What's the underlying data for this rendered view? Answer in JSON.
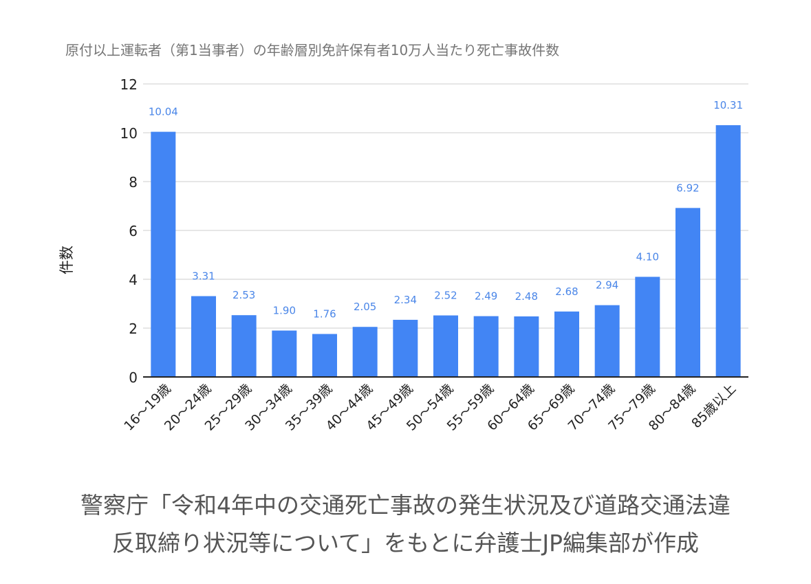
{
  "chart_data": {
    "type": "bar",
    "title": "原付以上運転者（第1当事者）の年齢層別免許保有者10万人当たり死亡事故件数",
    "ylabel": "件数",
    "xlabel": "",
    "categories": [
      "16～19歳",
      "20～24歳",
      "25～29歳",
      "30～34歳",
      "35～39歳",
      "40～44歳",
      "45～49歳",
      "50～54歳",
      "55～59歳",
      "60～64歳",
      "65～69歳",
      "70～74歳",
      "75～79歳",
      "80～84歳",
      "85歳以上"
    ],
    "values": [
      10.04,
      3.31,
      2.53,
      1.9,
      1.76,
      2.05,
      2.34,
      2.52,
      2.49,
      2.48,
      2.68,
      2.94,
      4.1,
      6.92,
      10.31
    ],
    "value_labels": [
      "10.04",
      "3.31",
      "2.53",
      "1.90",
      "1.76",
      "2.05",
      "2.34",
      "2.52",
      "2.49",
      "2.48",
      "2.68",
      "2.94",
      "4.10",
      "6.92",
      "10.31"
    ],
    "ylim": [
      0,
      12
    ],
    "yticks": [
      "0",
      "2",
      "4",
      "6",
      "8",
      "10",
      "12"
    ],
    "grid": true,
    "legend": "none",
    "colors": {
      "bar": "#4285f4",
      "value_label": "#4a86e8",
      "grid": "#cccccc",
      "axis": "#222222",
      "title": "#757575"
    }
  },
  "caption": {
    "line1": "警察庁「令和4年中の交通死亡事故の発生状況及び道路交通法違",
    "line2": "反取締り状況等について」をもとに弁護士JP編集部が作成"
  }
}
